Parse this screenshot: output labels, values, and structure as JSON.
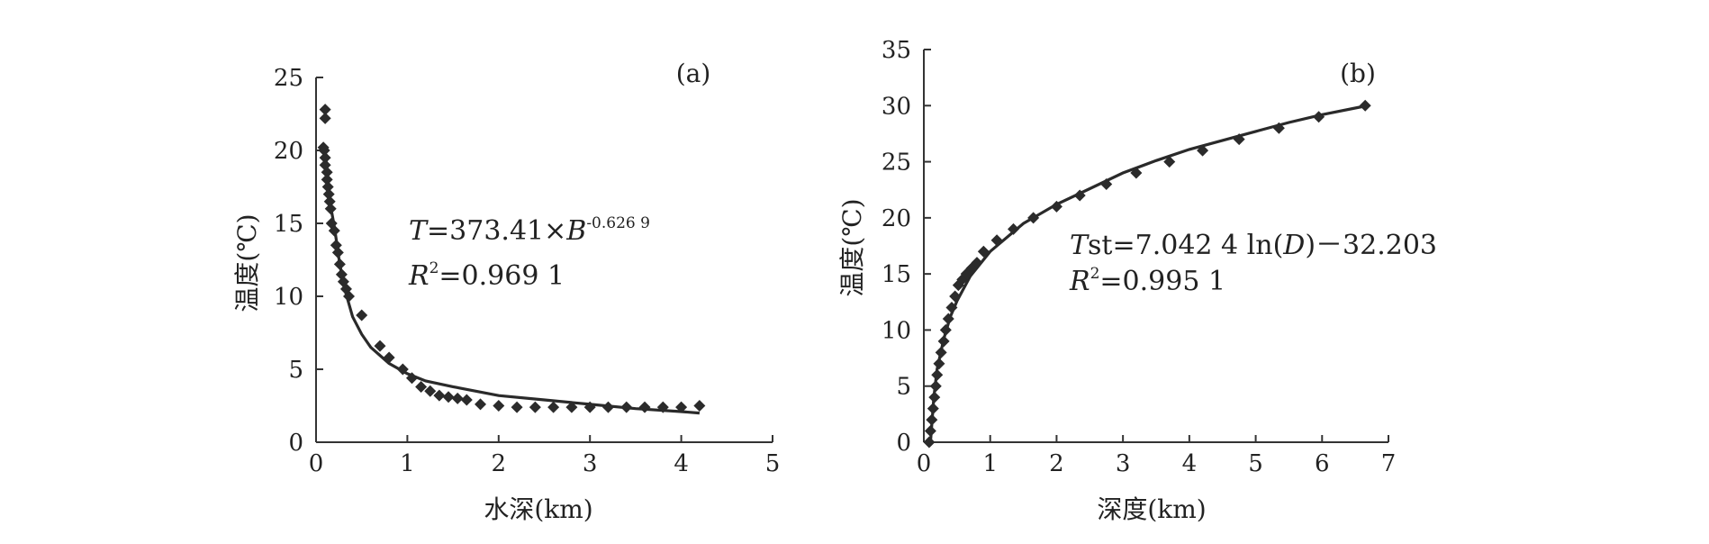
{
  "chart_data": [
    {
      "type": "scatter",
      "panel_label": "(a)",
      "xlabel": "水深(km)",
      "ylabel": "温度(℃)",
      "xlim": [
        0,
        5
      ],
      "ylim": [
        0,
        25
      ],
      "xticks": [
        0,
        1,
        2,
        3,
        4,
        5
      ],
      "yticks": [
        0,
        5,
        10,
        15,
        20,
        25
      ],
      "equation": {
        "lhs": "T",
        "mid": "=373.41×",
        "var": "B",
        "exp": "-0.626 9"
      },
      "r2": {
        "r": "R",
        "sup": "2",
        "rest": "=0.969 1"
      },
      "series": [
        {
          "kind": "points",
          "x": [
            0.1,
            0.1,
            0.08,
            0.09,
            0.1,
            0.1,
            0.12,
            0.12,
            0.13,
            0.14,
            0.15,
            0.16,
            0.17,
            0.2,
            0.22,
            0.24,
            0.26,
            0.28,
            0.3,
            0.33,
            0.36,
            0.5,
            0.7,
            0.8,
            0.95,
            1.05,
            1.15,
            1.25,
            1.35,
            1.45,
            1.55,
            1.65,
            1.8,
            2.0,
            2.2,
            2.4,
            2.6,
            2.8,
            3.0,
            3.2,
            3.4,
            3.6,
            3.8,
            4.0,
            4.2
          ],
          "y": [
            22.8,
            22.2,
            20.2,
            20.0,
            19.5,
            19.0,
            18.5,
            18.0,
            17.5,
            17.0,
            16.5,
            16.0,
            15.0,
            14.5,
            13.5,
            13.0,
            12.2,
            11.5,
            11.0,
            10.5,
            10.0,
            8.7,
            6.6,
            5.8,
            5.0,
            4.4,
            3.8,
            3.5,
            3.2,
            3.1,
            3.0,
            2.9,
            2.6,
            2.5,
            2.4,
            2.4,
            2.4,
            2.4,
            2.4,
            2.4,
            2.4,
            2.4,
            2.4,
            2.4,
            2.5
          ]
        },
        {
          "kind": "fit",
          "x": [
            0.1,
            0.12,
            0.15,
            0.2,
            0.25,
            0.3,
            0.4,
            0.5,
            0.6,
            0.8,
            1.0,
            1.2,
            1.5,
            2.0,
            2.5,
            3.0,
            3.5,
            4.0,
            4.2
          ],
          "y": [
            20.1,
            18.5,
            16.5,
            14.8,
            12.6,
            10.8,
            8.6,
            7.4,
            6.5,
            5.4,
            4.7,
            4.2,
            3.8,
            3.2,
            2.9,
            2.6,
            2.3,
            2.1,
            2.0
          ]
        }
      ]
    },
    {
      "type": "scatter",
      "panel_label": "(b)",
      "xlabel": "深度(km)",
      "ylabel": "温度(℃)",
      "xlim": [
        0,
        7
      ],
      "ylim": [
        0,
        35
      ],
      "xticks": [
        0,
        1,
        2,
        3,
        4,
        5,
        6,
        7
      ],
      "yticks": [
        0,
        5,
        10,
        15,
        20,
        25,
        30,
        35
      ],
      "equation": {
        "lhs": "T",
        "mid": "st=7.042 4 ln(",
        "var": "D",
        "rest": ")－32.203"
      },
      "r2": {
        "r": "R",
        "sup": "2",
        "rest": "=0.995 1"
      },
      "series": [
        {
          "kind": "points",
          "x": [
            0.08,
            0.1,
            0.12,
            0.14,
            0.16,
            0.18,
            0.2,
            0.23,
            0.26,
            0.3,
            0.33,
            0.37,
            0.42,
            0.47,
            0.52,
            0.58,
            0.64,
            0.72,
            0.8,
            0.9,
            1.1,
            1.35,
            1.65,
            2.0,
            2.35,
            2.75,
            3.2,
            3.7,
            4.2,
            4.75,
            5.35,
            5.95,
            6.65
          ],
          "y": [
            0,
            1,
            2,
            3,
            4,
            5,
            6,
            7,
            8,
            9,
            10,
            11,
            12,
            13,
            14,
            14.5,
            15,
            15.5,
            16,
            17,
            18,
            19,
            20,
            21,
            22,
            23,
            24,
            25,
            26,
            27,
            28,
            29,
            30
          ]
        },
        {
          "kind": "fit",
          "x": [
            0.1,
            0.15,
            0.2,
            0.3,
            0.4,
            0.5,
            0.7,
            1.0,
            1.5,
            2.0,
            2.5,
            3.0,
            3.5,
            4.0,
            4.5,
            5.0,
            5.5,
            6.0,
            6.6
          ],
          "y": [
            0,
            4,
            6.5,
            9.2,
            11.2,
            12.6,
            14.8,
            17.0,
            19.5,
            21.2,
            22.6,
            24.0,
            25.1,
            26.1,
            26.9,
            27.7,
            28.5,
            29.2,
            29.9
          ]
        }
      ]
    }
  ]
}
